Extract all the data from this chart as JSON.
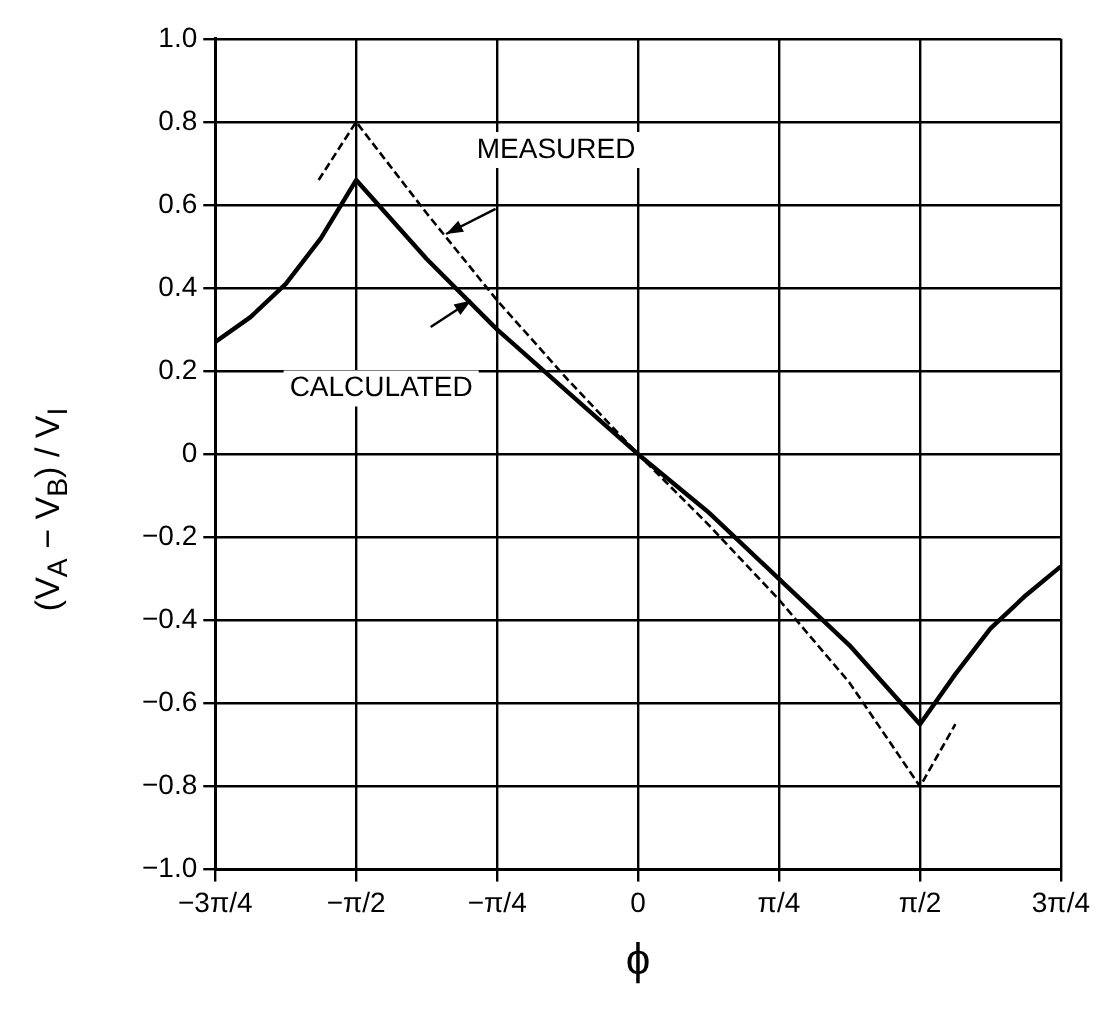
{
  "chart_data": {
    "type": "line",
    "xlabel": "ϕ",
    "ylabel": "(V$_{A}$ − V$_{B}$) / V$_{I}$",
    "xlim": [
      -2.356,
      2.356
    ],
    "xticks": [
      {
        "value": -2.356,
        "label": "−3π/4"
      },
      {
        "value": -1.571,
        "label": "−π/2"
      },
      {
        "value": -0.785,
        "label": "−π/4"
      },
      0,
      {
        "value": 0.785,
        "label": "π/4"
      },
      {
        "value": 1.571,
        "label": "π/2"
      },
      {
        "value": 2.356,
        "label": "3π/4"
      }
    ],
    "ylim": [
      -1,
      1
    ],
    "yticks": [
      {
        "value": -1,
        "label": "−1.0"
      },
      {
        "value": -0.8,
        "label": "−0.8"
      },
      {
        "value": -0.6,
        "label": "−0.6"
      },
      {
        "value": -0.4,
        "label": "−0.4"
      },
      {
        "value": -0.2,
        "label": "−0.2"
      },
      0,
      {
        "value": 0.2,
        "label": "0.2"
      },
      {
        "value": 0.4,
        "label": "0.4"
      },
      {
        "value": 0.6,
        "label": "0.6"
      },
      {
        "value": 0.8,
        "label": "0.8"
      },
      {
        "value": 1,
        "label": "1.0"
      }
    ],
    "grid": true,
    "marker": "none",
    "series": [
      {
        "color": "#000000",
        "line_style": "solid",
        "x": [
          -2.356,
          -2.16,
          -1.963,
          -1.767,
          -1.571,
          -1.178,
          -0.785,
          -0.393,
          0,
          0.393,
          0.785,
          1.178,
          1.571,
          1.767,
          1.963,
          2.16,
          2.356
        ],
        "values": [
          0.27,
          0.33,
          0.41,
          0.52,
          0.66,
          0.47,
          0.3,
          0.15,
          0,
          -0.14,
          -0.3,
          -0.46,
          -0.65,
          -0.53,
          -0.42,
          -0.34,
          -0.27
        ]
      },
      {
        "color": "#000000",
        "line_style": "dashed",
        "x": [
          -1.78,
          -1.571,
          -1.178,
          -0.785,
          -0.393,
          0,
          0.393,
          0.785,
          1.178,
          1.571,
          1.768
        ],
        "values": [
          0.66,
          0.8,
          0.58,
          0.37,
          0.18,
          0,
          -0.17,
          -0.35,
          -0.55,
          -0.8,
          -0.65
        ]
      }
    ],
    "annotations": [
      {
        "text": "MEASURED",
        "x": -1.07,
        "y": 0.53
      },
      {
        "text": "CALCULATED",
        "x": -0.93,
        "y": 0.37
      }
    ]
  }
}
